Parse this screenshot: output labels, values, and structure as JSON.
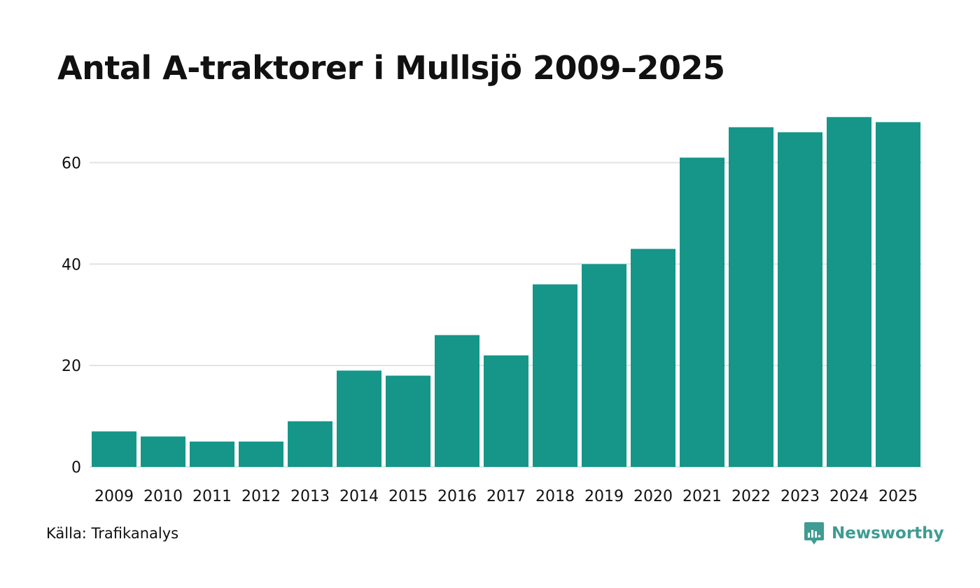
{
  "colors": {
    "bar": "#159689",
    "grid": "#e2e2e2",
    "text": "#111111",
    "brand": "#3e9c92"
  },
  "source": "Källa: Trafikanalys",
  "brand": {
    "name": "Newsworthy",
    "icon": "newsworthy-logo-icon"
  },
  "chart_data": {
    "type": "bar",
    "title": "Antal A-traktorer i Mullsjö 2009–2025",
    "xlabel": "",
    "ylabel": "",
    "categories": [
      "2009",
      "2010",
      "2011",
      "2012",
      "2013",
      "2014",
      "2015",
      "2016",
      "2017",
      "2018",
      "2019",
      "2020",
      "2021",
      "2022",
      "2023",
      "2024",
      "2025"
    ],
    "values": [
      7,
      6,
      5,
      5,
      9,
      19,
      18,
      26,
      22,
      36,
      40,
      43,
      61,
      67,
      66,
      69,
      68
    ],
    "ylim": [
      0,
      70
    ],
    "yticks": [
      0,
      20,
      40,
      60
    ],
    "grid": true,
    "legend": "none"
  }
}
